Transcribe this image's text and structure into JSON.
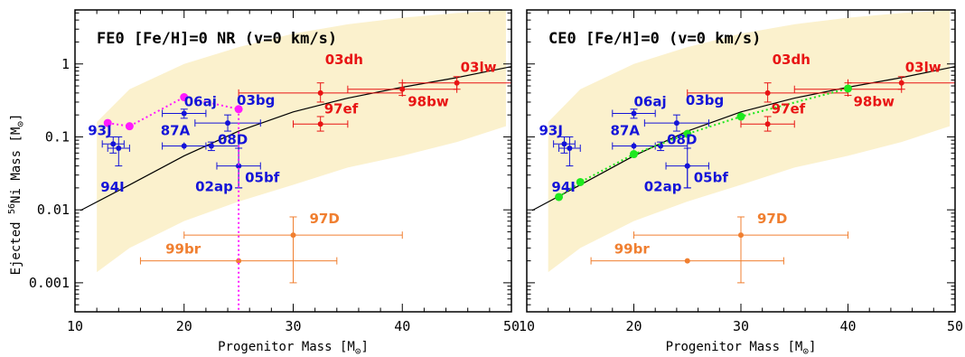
{
  "chart_data": [
    {
      "type": "scatter",
      "title": "FE0 [Fe/H]=0 NR (v=0 km/s)",
      "xlabel": "Progenitor Mass [M",
      "ylabel": "Ejected 56Ni Mass [M",
      "xlim": [
        10,
        50
      ],
      "ylim": [
        0.0004,
        5.5
      ],
      "yscale": "log",
      "xticks": [
        "10",
        "20",
        "30",
        "40",
        "50"
      ],
      "yticks": [
        "0.001",
        "0.01",
        "0.1",
        "1"
      ],
      "sun_symbol": "⊙",
      "model_curve": [
        [
          10.5,
          0.0098
        ],
        [
          15,
          0.022
        ],
        [
          20,
          0.055
        ],
        [
          25,
          0.12
        ],
        [
          30,
          0.22
        ],
        [
          35,
          0.34
        ],
        [
          40,
          0.48
        ],
        [
          45,
          0.65
        ],
        [
          50,
          0.92
        ]
      ],
      "band_upper": [
        [
          12,
          0.16
        ],
        [
          15,
          0.45
        ],
        [
          20,
          1.0
        ],
        [
          25,
          1.7
        ],
        [
          30,
          2.6
        ],
        [
          35,
          3.5
        ],
        [
          40,
          4.3
        ],
        [
          45,
          5.0
        ],
        [
          49.5,
          5.4
        ]
      ],
      "band_lower": [
        [
          12,
          0.0014
        ],
        [
          15,
          0.003
        ],
        [
          20,
          0.007
        ],
        [
          25,
          0.013
        ],
        [
          30,
          0.022
        ],
        [
          35,
          0.038
        ],
        [
          40,
          0.055
        ],
        [
          45,
          0.085
        ],
        [
          49.5,
          0.14
        ]
      ],
      "supernovae": [
        {
          "label": "93J",
          "x": 13.5,
          "y": 0.08,
          "xerr": [
            1.0,
            1.0
          ],
          "yerr": [
            0.06,
            0.1
          ],
          "color": "#1414d8"
        },
        {
          "label": "94I",
          "x": 14,
          "y": 0.07,
          "xerr": [
            1.0,
            1.0
          ],
          "yerr": [
            0.04,
            0.1
          ],
          "color": "#1414d8"
        },
        {
          "label": "06aj",
          "x": 20,
          "y": 0.21,
          "xerr": [
            2.0,
            2.0
          ],
          "yerr": [
            0.18,
            0.24
          ],
          "color": "#1414d8"
        },
        {
          "label": "87A",
          "x": 20,
          "y": 0.075,
          "xerr": [
            2.0,
            2.0
          ],
          "yerr": [
            0.075,
            0.075
          ],
          "color": "#1414d8"
        },
        {
          "label": "08D",
          "x": 22.5,
          "y": 0.075,
          "xerr": [
            2.5,
            2.5
          ],
          "yerr": [
            0.065,
            0.085
          ],
          "color": "#1414d8"
        },
        {
          "label": "03bg",
          "x": 24,
          "y": 0.155,
          "xerr": [
            3.0,
            3.0
          ],
          "yerr": [
            0.12,
            0.2
          ],
          "color": "#1414d8"
        },
        {
          "label": "05bf",
          "x": 25,
          "y": 0.04,
          "xerr": [
            2.0,
            2.0
          ],
          "yerr": [
            0.02,
            0.07
          ],
          "color": "#1414d8"
        },
        {
          "label": "02ap",
          "x": 25,
          "y": 0.04,
          "xerr": [
            0,
            0
          ],
          "yerr": [
            0.02,
            0.04
          ],
          "color": "#1414d8"
        },
        {
          "label": "03dh",
          "x": 32.5,
          "y": 0.4,
          "xerr": [
            7.5,
            7.5
          ],
          "yerr": [
            0.3,
            0.55
          ],
          "color": "#e81414"
        },
        {
          "label": "97ef",
          "x": 32.5,
          "y": 0.15,
          "xerr": [
            2.5,
            2.5
          ],
          "yerr": [
            0.12,
            0.19
          ],
          "color": "#e81414"
        },
        {
          "label": "98bw",
          "x": 40,
          "y": 0.45,
          "xerr": [
            5.0,
            5.0
          ],
          "yerr": [
            0.37,
            0.55
          ],
          "color": "#e81414"
        },
        {
          "label": "03lw",
          "x": 45,
          "y": 0.55,
          "xerr": [
            5.0,
            5.0
          ],
          "yerr": [
            0.45,
            0.67
          ],
          "color": "#e81414"
        },
        {
          "label": "97D",
          "x": 30,
          "y": 0.0045,
          "xerr": [
            10.0,
            10.0
          ],
          "yerr": [
            0.001,
            0.008
          ],
          "color": "#f07f30"
        },
        {
          "label": "99br",
          "x": 25,
          "y": 0.002,
          "xerr": [
            9.0,
            9.0
          ],
          "yerr": [
            0,
            0
          ],
          "color": "#f07f30"
        }
      ],
      "model_points": {
        "color": "#ff1aff",
        "points": [
          [
            13,
            0.155
          ],
          [
            15,
            0.14
          ],
          [
            20,
            0.35
          ],
          [
            25,
            0.24
          ]
        ],
        "vertical_drop_x": 25
      }
    },
    {
      "type": "scatter",
      "title": "CE0 [Fe/H]=0 (v=0 km/s)",
      "xlabel": "Progenitor Mass [M",
      "xlim": [
        10,
        50
      ],
      "ylim": [
        0.0004,
        5.5
      ],
      "yscale": "log",
      "xticks": [
        "10",
        "20",
        "30",
        "40",
        "50"
      ],
      "sun_symbol": "⊙",
      "model_points": {
        "color": "#1ee81e",
        "points": [
          [
            13,
            0.015
          ],
          [
            15,
            0.024
          ],
          [
            20,
            0.058
          ],
          [
            25,
            0.11
          ],
          [
            30,
            0.19
          ],
          [
            40,
            0.46
          ]
        ]
      }
    }
  ]
}
